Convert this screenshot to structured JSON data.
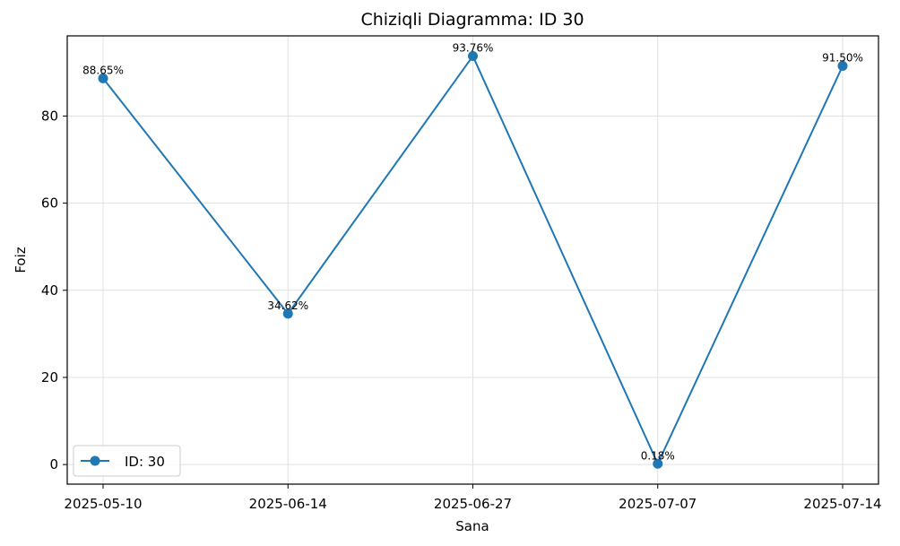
{
  "chart_data": {
    "type": "line",
    "title": "Chiziqli Diagramma: ID 30",
    "xlabel": "Sana",
    "ylabel": "Foiz",
    "categories": [
      "2025-05-10",
      "2025-06-14",
      "2025-06-27",
      "2025-07-07",
      "2025-07-14"
    ],
    "series": [
      {
        "name": "ID: 30",
        "values": [
          88.65,
          34.62,
          93.76,
          0.18,
          91.5
        ],
        "labels": [
          "88.65%",
          "34.62%",
          "93.76%",
          "0.18%",
          "91.50%"
        ],
        "color": "#1f77b4"
      }
    ],
    "ylim": [
      -4.5,
      98.4
    ],
    "yticks": [
      0,
      20,
      40,
      60,
      80
    ],
    "grid": true,
    "legend_position": "lower-left"
  }
}
